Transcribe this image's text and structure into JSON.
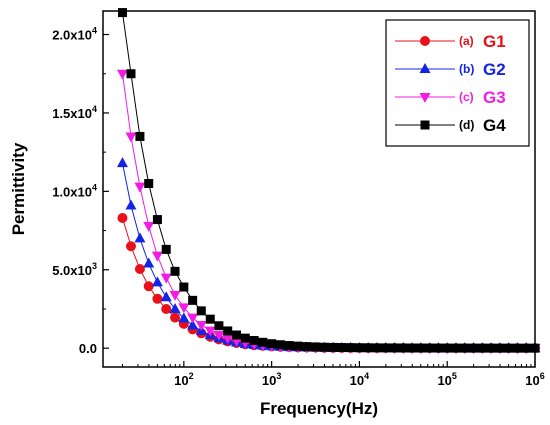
{
  "chart_data": {
    "type": "scatter",
    "xlabel": "Frequency(Hz)",
    "ylabel": "Permittivity",
    "x_scale": "log",
    "xlim": [
      12,
      1000000
    ],
    "ylim": [
      -1200,
      21500
    ],
    "x_ticks": [
      {
        "value": 100,
        "base": "10",
        "exp": "2"
      },
      {
        "value": 1000,
        "base": "10",
        "exp": "3"
      },
      {
        "value": 10000,
        "base": "10",
        "exp": "4"
      },
      {
        "value": 100000,
        "base": "10",
        "exp": "5"
      },
      {
        "value": 1000000,
        "base": "10",
        "exp": "6"
      }
    ],
    "y_ticks": [
      {
        "value": 0,
        "mant": "0.0",
        "exp": ""
      },
      {
        "value": 5000,
        "mant": "5.0x10",
        "exp": "3"
      },
      {
        "value": 10000,
        "mant": "1.0x10",
        "exp": "4"
      },
      {
        "value": 15000,
        "mant": "1.5x10",
        "exp": "4"
      },
      {
        "value": 20000,
        "mant": "2.0x10",
        "exp": "4"
      }
    ],
    "grid": false,
    "legend_position": "top-right",
    "x": [
      20,
      25,
      31.6,
      39.8,
      50,
      63,
      79.4,
      100,
      126,
      158,
      200,
      251,
      316,
      398,
      501,
      631,
      794,
      1000,
      1259,
      1585,
      1995,
      2512,
      3162,
      3981,
      5012,
      6310,
      7943,
      10000,
      12589,
      15849,
      19953,
      25119,
      31623,
      39811,
      50119,
      63096,
      79433,
      100000,
      125893,
      158489,
      199526,
      251189,
      316228,
      398107,
      501187,
      630957,
      794328,
      1000000
    ],
    "series": [
      {
        "tag": "(a)",
        "name": "G1",
        "color": "#e8101a",
        "marker": "circle",
        "values": [
          8300,
          6500,
          5050,
          3950,
          3150,
          2500,
          1950,
          1550,
          1200,
          950,
          730,
          560,
          430,
          330,
          250,
          190,
          150,
          115,
          90,
          70,
          55,
          45,
          36,
          30,
          25,
          21,
          18,
          15,
          13,
          11,
          10,
          9,
          8,
          7,
          6,
          5,
          5,
          4,
          4,
          3,
          3,
          3,
          2,
          2,
          2,
          2,
          2,
          2
        ]
      },
      {
        "tag": "(b)",
        "name": "G2",
        "color": "#1424e6",
        "marker": "triangle-up",
        "values": [
          11800,
          9100,
          7000,
          5400,
          4200,
          3250,
          2500,
          1900,
          1450,
          1100,
          830,
          630,
          480,
          360,
          270,
          205,
          155,
          120,
          92,
          71,
          56,
          45,
          36,
          30,
          25,
          21,
          18,
          15,
          13,
          11,
          10,
          9,
          8,
          7,
          6,
          5,
          5,
          4,
          4,
          3,
          3,
          3,
          2,
          2,
          2,
          2,
          2,
          2
        ]
      },
      {
        "tag": "(c)",
        "name": "G3",
        "color": "#f21de5",
        "marker": "triangle-down",
        "values": [
          17500,
          13500,
          10300,
          7800,
          5900,
          4500,
          3400,
          2600,
          1950,
          1480,
          1120,
          840,
          640,
          480,
          360,
          270,
          205,
          155,
          118,
          90,
          70,
          55,
          44,
          36,
          30,
          25,
          21,
          18,
          15,
          13,
          11,
          10,
          9,
          8,
          7,
          6,
          5,
          5,
          4,
          4,
          3,
          3,
          3,
          2,
          2,
          2,
          2,
          2
        ]
      },
      {
        "tag": "(d)",
        "name": "G4",
        "color": "#000000",
        "marker": "square",
        "values": [
          21400,
          17500,
          13500,
          10500,
          8200,
          6300,
          4900,
          3900,
          3050,
          2380,
          1850,
          1430,
          1100,
          840,
          640,
          490,
          375,
          285,
          220,
          168,
          130,
          100,
          78,
          62,
          50,
          41,
          34,
          28,
          24,
          20,
          17,
          15,
          13,
          11,
          10,
          9,
          8,
          7,
          6,
          5,
          5,
          4,
          4,
          3,
          3,
          3,
          2,
          2
        ]
      }
    ]
  }
}
